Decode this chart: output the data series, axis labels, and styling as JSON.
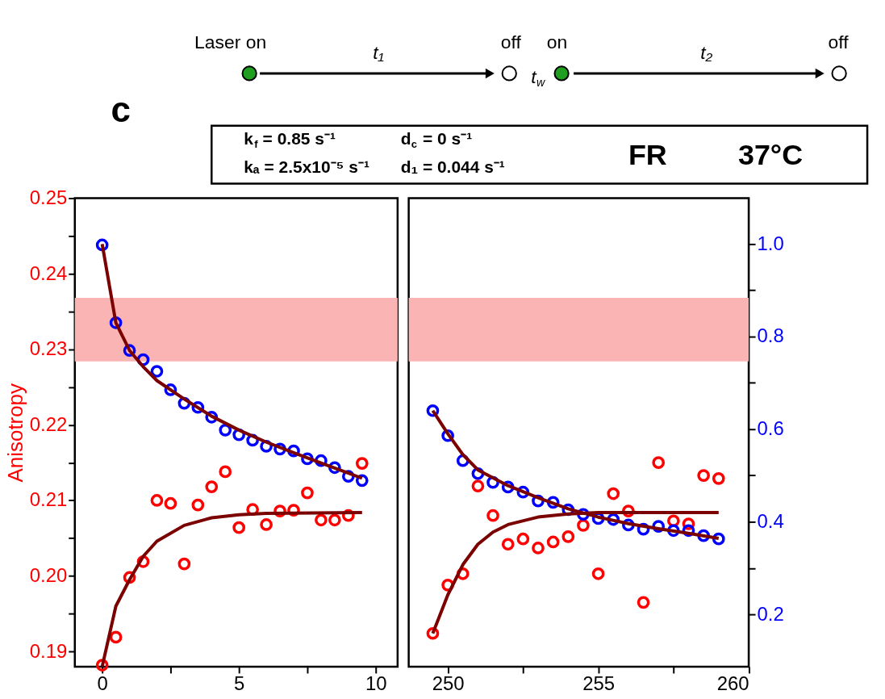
{
  "chart_data": [
    {
      "type": "scatter",
      "ylabel": "Anisotropy",
      "annotations": [
        "c",
        "Laser on",
        "t₁",
        "off",
        "t$_{w}$",
        "on",
        "t₂",
        "off",
        "k$_{f}$ = 0.85 s⁻¹",
        "d$_{c}$ = 0 s⁻¹",
        "kₐ = 2.5x10⁻⁵ s⁻¹",
        "d₁ = 0.044 s⁻¹",
        "FR",
        "37°C"
      ],
      "xlim": [
        -1,
        10.8
      ],
      "xticks": [
        0,
        {
          "value": 2.5,
          "label": null
        },
        5,
        {
          "value": 7.5,
          "label": null
        },
        10
      ],
      "ylim": [
        0.188,
        0.25
      ],
      "yticks": [
        {
          "value": 0.19,
          "label": "0.19"
        },
        {
          "value": 0.195,
          "label": null
        },
        {
          "value": 0.2,
          "label": "0.20"
        },
        {
          "value": 0.205,
          "label": null
        },
        {
          "value": 0.21,
          "label": "0.21"
        },
        {
          "value": 0.215,
          "label": null
        },
        {
          "value": 0.22,
          "label": "0.22"
        },
        {
          "value": 0.225,
          "label": null
        },
        {
          "value": 0.23,
          "label": "0.23"
        },
        {
          "value": 0.235,
          "label": null
        },
        {
          "value": 0.24,
          "label": "0.24"
        },
        {
          "value": 0.245,
          "label": null
        },
        {
          "value": 0.25,
          "label": "0.25"
        }
      ],
      "y2lim": [
        0.087,
        1.099
      ],
      "tick_labels": [
        "x",
        "y"
      ],
      "bands": [
        {
          "axis": "y",
          "from": 0.2284,
          "to": 0.2368,
          "color": "#fbb4b4"
        }
      ],
      "x": [
        0,
        0.5,
        1,
        1.5,
        2,
        2.5,
        3,
        3.5,
        4,
        4.5,
        5,
        5.5,
        6,
        6.5,
        7,
        7.5,
        8,
        8.5,
        9,
        9.5
      ],
      "series": [
        {
          "type": "scatter",
          "marker": "circle",
          "color": "#ff0000",
          "values": [
            0.1882,
            0.1919,
            0.1998,
            0.2019,
            0.21,
            0.2096,
            0.2016,
            0.2094,
            0.2118,
            0.2138,
            0.2064,
            0.2088,
            0.2068,
            0.2086,
            0.2087,
            0.211,
            0.2074,
            0.2074,
            0.208,
            0.2149
          ]
        },
        {
          "type": "scatter",
          "marker": "circle",
          "axis": "y2",
          "color": "#0000ff",
          "values": [
            0.998,
            0.83,
            0.77,
            0.75,
            0.725,
            0.685,
            0.656,
            0.647,
            0.626,
            0.598,
            0.588,
            0.576,
            0.563,
            0.557,
            0.553,
            0.536,
            0.532,
            0.517,
            0.498,
            0.489
          ]
        },
        {
          "type": "line",
          "color": "#7b0000",
          "x": [
            0,
            0.5,
            1,
            1.5,
            2,
            3,
            4,
            5,
            6,
            9.5
          ],
          "values": [
            0.188,
            0.196,
            0.1995,
            0.2026,
            0.2046,
            0.2067,
            0.2077,
            0.2081,
            0.2083,
            0.2084
          ]
        },
        {
          "type": "line",
          "axis": "y2",
          "color": "#7b0000",
          "x": [
            0,
            0.5,
            1,
            1.5,
            2,
            3,
            4,
            5,
            6,
            7,
            8,
            9,
            9.5
          ],
          "values": [
            1.0,
            0.83,
            0.77,
            0.735,
            0.705,
            0.665,
            0.628,
            0.598,
            0.572,
            0.549,
            0.527,
            0.505,
            0.494
          ]
        }
      ]
    },
    {
      "type": "scatter",
      "xlim": [
        248.7,
        260
      ],
      "xticks": [
        250,
        {
          "value": 252.5,
          "label": null
        },
        255,
        {
          "value": 257.5,
          "label": null
        },
        260
      ],
      "ylim": [
        0.188,
        0.25
      ],
      "y2lim": [
        0.087,
        1.099
      ],
      "y2ticks": [
        {
          "value": 0.2,
          "label": "0.2"
        },
        {
          "value": 0.3,
          "label": null
        },
        {
          "value": 0.4,
          "label": "0.4"
        },
        {
          "value": 0.5,
          "label": null
        },
        {
          "value": 0.6,
          "label": "0.6"
        },
        {
          "value": 0.7,
          "label": null
        },
        {
          "value": 0.8,
          "label": "0.8"
        },
        {
          "value": 0.9,
          "label": null
        },
        {
          "value": 1.0,
          "label": "1.0"
        }
      ],
      "tick_labels": [
        "x",
        "y2"
      ],
      "bands": [
        {
          "axis": "y",
          "from": 0.2284,
          "to": 0.2368,
          "color": "#fbb4b4"
        }
      ],
      "x": [
        249.5,
        250,
        250.5,
        251,
        251.5,
        252,
        252.5,
        253,
        253.5,
        254,
        254.5,
        255,
        255.5,
        256,
        256.5,
        257,
        257.5,
        258,
        258.5,
        259
      ],
      "series": [
        {
          "type": "scatter",
          "marker": "circle",
          "color": "#ff0000",
          "values": [
            0.1924,
            0.1988,
            0.2003,
            0.2119,
            0.208,
            0.2042,
            0.2049,
            0.2037,
            0.2045,
            0.2052,
            0.2067,
            0.2003,
            0.2109,
            0.2086,
            0.1965,
            0.215,
            0.2073,
            0.2069,
            0.2133,
            0.2129
          ]
        },
        {
          "type": "scatter",
          "marker": "circle",
          "axis": "y2",
          "color": "#0000ff",
          "values": [
            0.64,
            0.586,
            0.532,
            0.504,
            0.485,
            0.475,
            0.464,
            0.445,
            0.442,
            0.426,
            0.416,
            0.407,
            0.405,
            0.393,
            0.384,
            0.39,
            0.381,
            0.381,
            0.37,
            0.363
          ]
        },
        {
          "type": "line",
          "color": "#7b0000",
          "x": [
            249.5,
            250,
            250.5,
            251,
            251.5,
            252,
            253,
            254,
            255,
            259
          ],
          "values": [
            0.1924,
            0.1975,
            0.2015,
            0.2042,
            0.2058,
            0.2068,
            0.2078,
            0.2082,
            0.2084,
            0.2084
          ]
        },
        {
          "type": "line",
          "axis": "y2",
          "color": "#7b0000",
          "x": [
            249.5,
            250,
            250.5,
            251,
            252,
            253,
            254,
            255,
            256,
            257,
            258,
            259
          ],
          "values": [
            0.64,
            0.59,
            0.545,
            0.512,
            0.478,
            0.452,
            0.428,
            0.41,
            0.396,
            0.385,
            0.375,
            0.364
          ]
        }
      ]
    }
  ]
}
